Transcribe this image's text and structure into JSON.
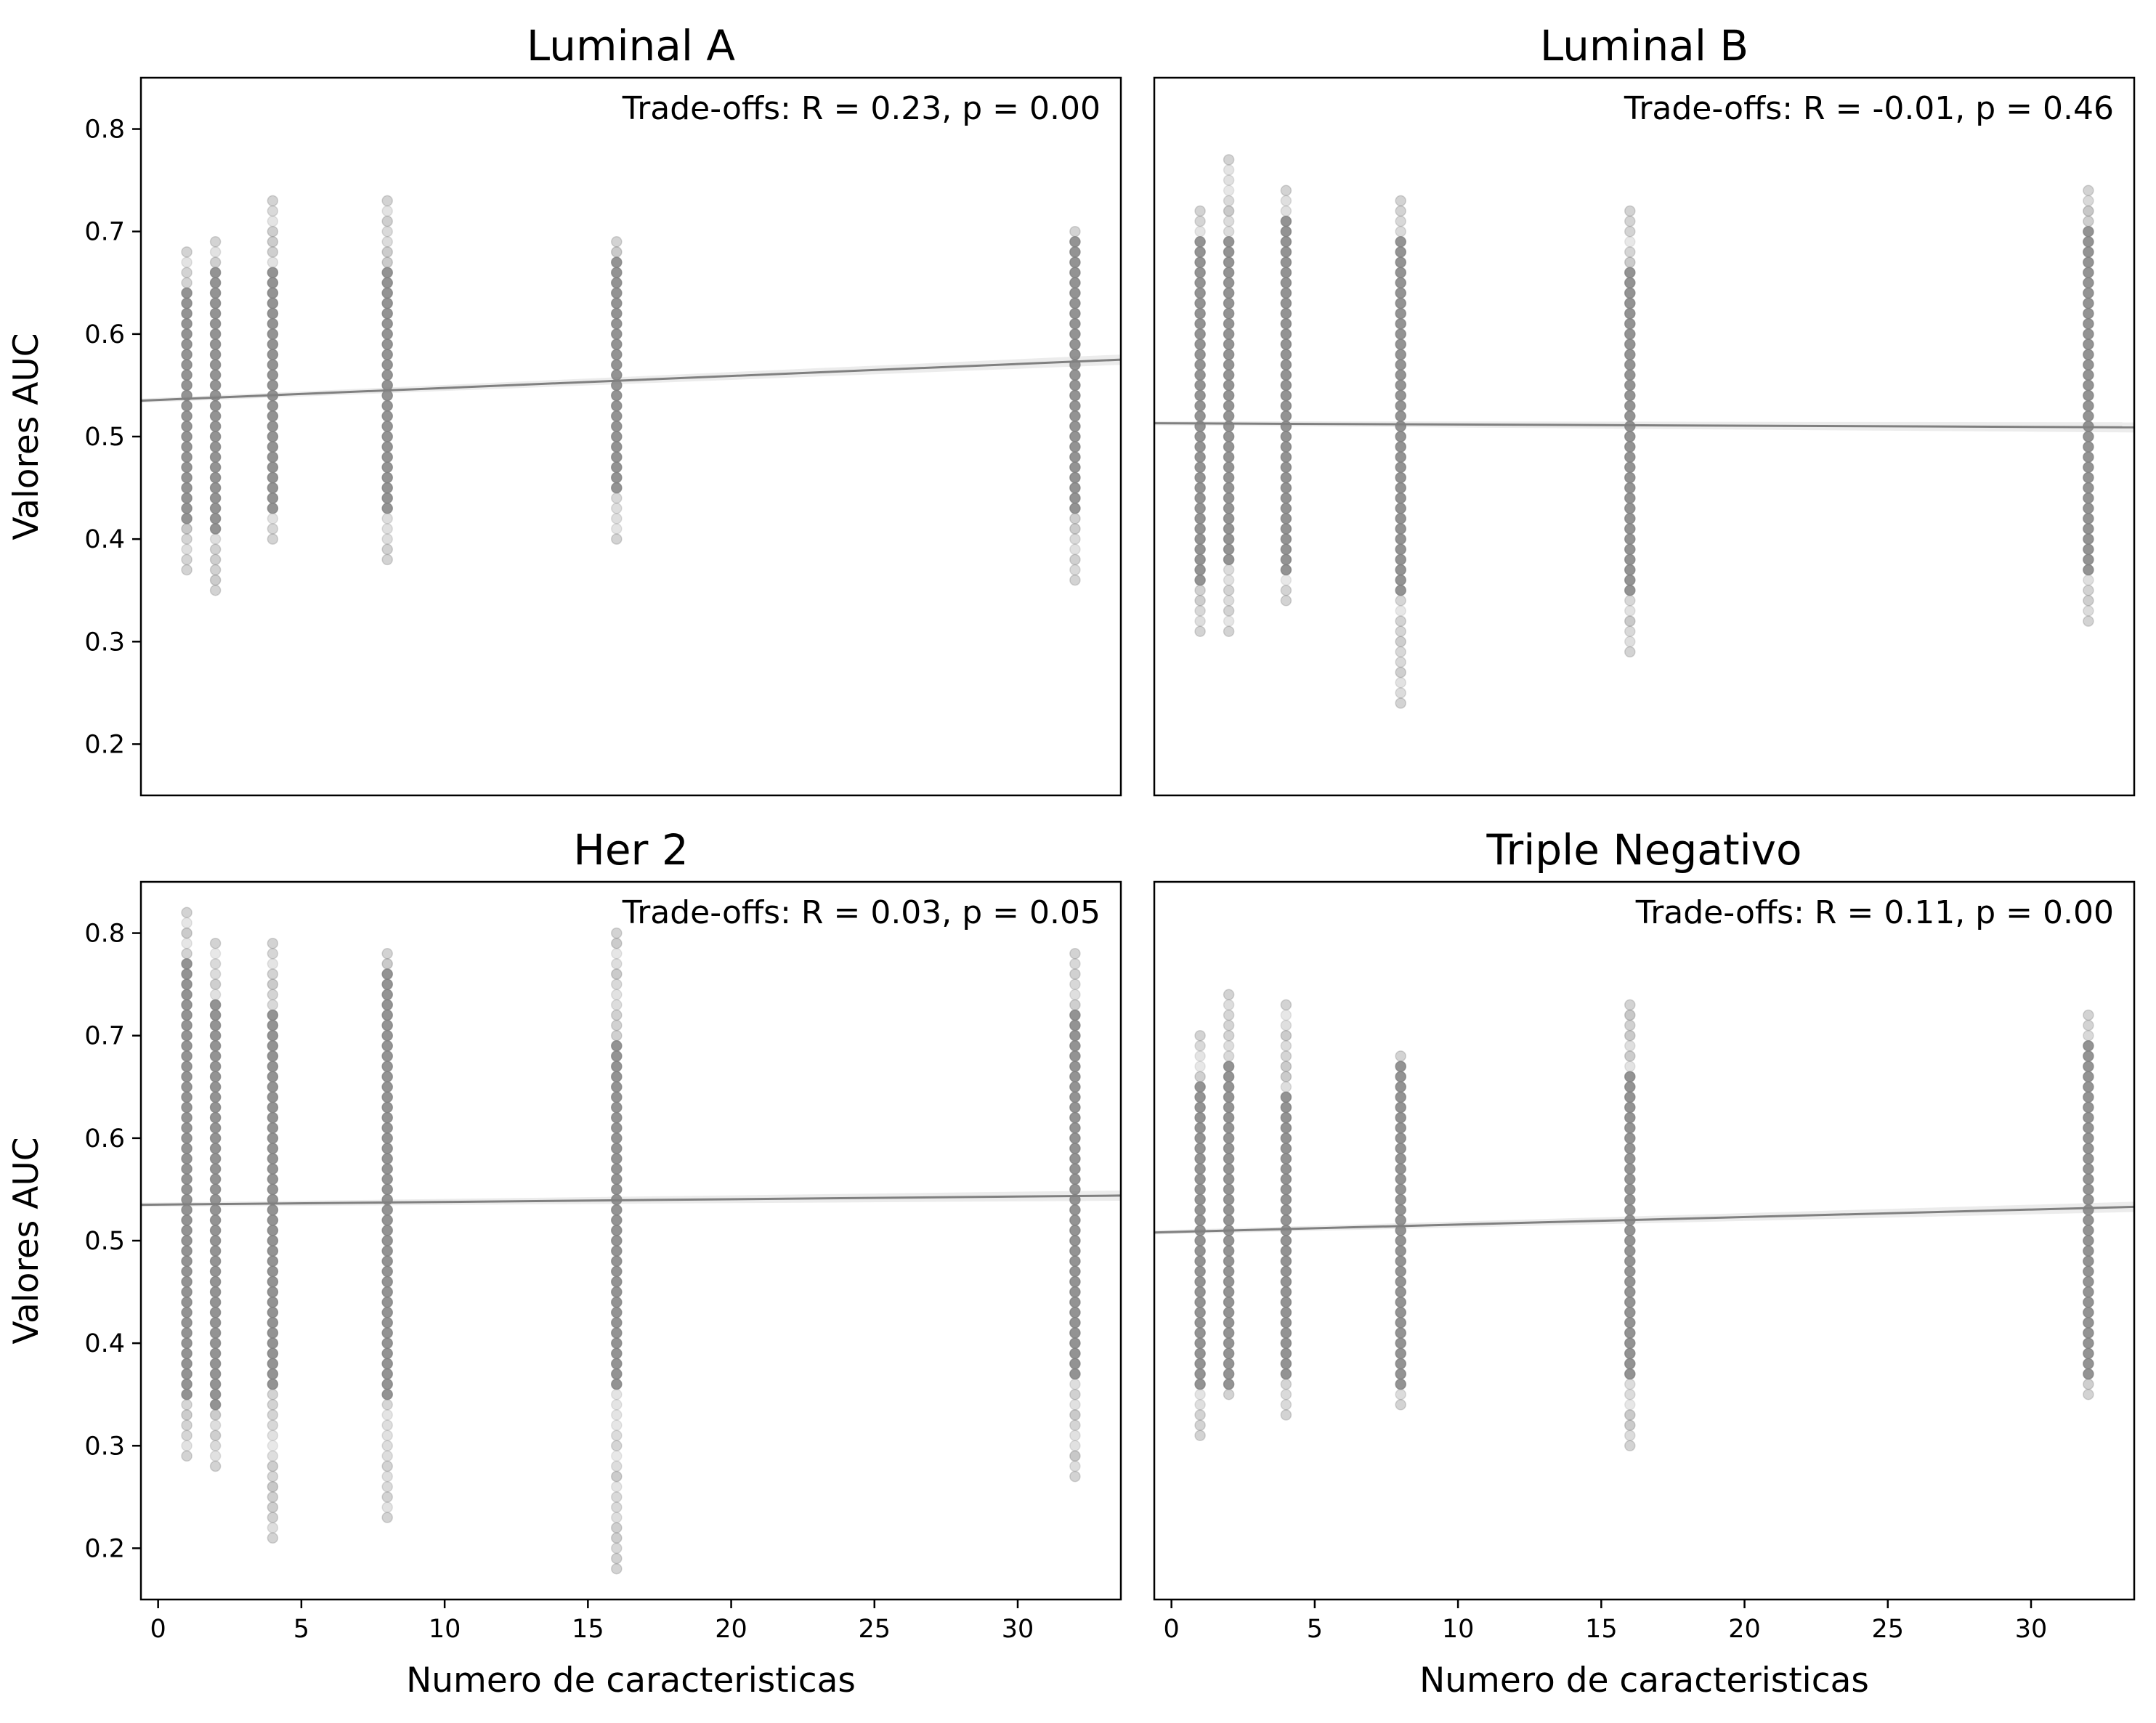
{
  "figure": {
    "point_color": "#808080",
    "line_color": "#808080"
  },
  "chart_data": [
    {
      "type": "scatter",
      "title": "Luminal A",
      "annotation": "Trade-offs: R = 0.23, p = 0.00",
      "xlabel": "",
      "ylabel": "Valores AUC",
      "xlim": [
        -0.6,
        33.6
      ],
      "ylim": [
        0.15,
        0.85
      ],
      "xticks": [],
      "yticks": [
        0.2,
        0.3,
        0.4,
        0.5,
        0.6,
        0.7,
        0.8
      ],
      "regression": {
        "x": [
          -0.6,
          33.6
        ],
        "y": [
          0.535,
          0.575
        ]
      },
      "groups": [
        {
          "x": 1,
          "min": 0.37,
          "max": 0.68,
          "dense_min": 0.42,
          "dense_max": 0.64
        },
        {
          "x": 2,
          "min": 0.35,
          "max": 0.69,
          "dense_min": 0.41,
          "dense_max": 0.66
        },
        {
          "x": 4,
          "min": 0.4,
          "max": 0.73,
          "dense_min": 0.43,
          "dense_max": 0.66
        },
        {
          "x": 8,
          "min": 0.38,
          "max": 0.73,
          "dense_min": 0.43,
          "dense_max": 0.66
        },
        {
          "x": 16,
          "min": 0.4,
          "max": 0.69,
          "dense_min": 0.45,
          "dense_max": 0.67
        },
        {
          "x": 32,
          "min": 0.36,
          "max": 0.7,
          "dense_min": 0.43,
          "dense_max": 0.69
        }
      ]
    },
    {
      "type": "scatter",
      "title": "Luminal B",
      "annotation": "Trade-offs: R = -0.01, p = 0.46",
      "xlabel": "",
      "ylabel": "",
      "xlim": [
        -0.6,
        33.6
      ],
      "ylim": [
        0.15,
        0.85
      ],
      "xticks": [],
      "yticks": [],
      "regression": {
        "x": [
          -0.6,
          33.6
        ],
        "y": [
          0.513,
          0.509
        ]
      },
      "groups": [
        {
          "x": 1,
          "min": 0.31,
          "max": 0.72,
          "dense_min": 0.36,
          "dense_max": 0.69
        },
        {
          "x": 2,
          "min": 0.31,
          "max": 0.77,
          "dense_min": 0.38,
          "dense_max": 0.69
        },
        {
          "x": 4,
          "min": 0.34,
          "max": 0.74,
          "dense_min": 0.37,
          "dense_max": 0.71
        },
        {
          "x": 8,
          "min": 0.24,
          "max": 0.73,
          "dense_min": 0.35,
          "dense_max": 0.69
        },
        {
          "x": 16,
          "min": 0.29,
          "max": 0.72,
          "dense_min": 0.35,
          "dense_max": 0.66
        },
        {
          "x": 32,
          "min": 0.32,
          "max": 0.74,
          "dense_min": 0.37,
          "dense_max": 0.7
        }
      ]
    },
    {
      "type": "scatter",
      "title": "Her 2",
      "annotation": "Trade-offs: R = 0.03, p = 0.05",
      "xlabel": "Numero de caracteristicas",
      "ylabel": "Valores AUC",
      "xlim": [
        -0.6,
        33.6
      ],
      "ylim": [
        0.15,
        0.85
      ],
      "xticks": [
        0,
        5,
        10,
        15,
        20,
        25,
        30
      ],
      "yticks": [
        0.2,
        0.3,
        0.4,
        0.5,
        0.6,
        0.7,
        0.8
      ],
      "regression": {
        "x": [
          -0.6,
          33.6
        ],
        "y": [
          0.535,
          0.544
        ]
      },
      "groups": [
        {
          "x": 1,
          "min": 0.29,
          "max": 0.82,
          "dense_min": 0.35,
          "dense_max": 0.77
        },
        {
          "x": 2,
          "min": 0.28,
          "max": 0.79,
          "dense_min": 0.34,
          "dense_max": 0.73
        },
        {
          "x": 4,
          "min": 0.21,
          "max": 0.79,
          "dense_min": 0.36,
          "dense_max": 0.72
        },
        {
          "x": 8,
          "min": 0.23,
          "max": 0.78,
          "dense_min": 0.35,
          "dense_max": 0.76
        },
        {
          "x": 16,
          "min": 0.18,
          "max": 0.8,
          "dense_min": 0.36,
          "dense_max": 0.69
        },
        {
          "x": 32,
          "min": 0.27,
          "max": 0.78,
          "dense_min": 0.37,
          "dense_max": 0.72
        }
      ]
    },
    {
      "type": "scatter",
      "title": "Triple Negativo",
      "annotation": "Trade-offs: R = 0.11, p = 0.00",
      "xlabel": "Numero de caracteristicas",
      "ylabel": "",
      "xlim": [
        -0.6,
        33.6
      ],
      "ylim": [
        0.15,
        0.85
      ],
      "xticks": [
        0,
        5,
        10,
        15,
        20,
        25,
        30
      ],
      "yticks": [],
      "regression": {
        "x": [
          -0.6,
          33.6
        ],
        "y": [
          0.508,
          0.533
        ]
      },
      "groups": [
        {
          "x": 1,
          "min": 0.31,
          "max": 0.7,
          "dense_min": 0.36,
          "dense_max": 0.65
        },
        {
          "x": 2,
          "min": 0.35,
          "max": 0.74,
          "dense_min": 0.36,
          "dense_max": 0.67
        },
        {
          "x": 4,
          "min": 0.33,
          "max": 0.73,
          "dense_min": 0.37,
          "dense_max": 0.64
        },
        {
          "x": 8,
          "min": 0.34,
          "max": 0.68,
          "dense_min": 0.36,
          "dense_max": 0.67
        },
        {
          "x": 16,
          "min": 0.3,
          "max": 0.73,
          "dense_min": 0.37,
          "dense_max": 0.66
        },
        {
          "x": 32,
          "min": 0.35,
          "max": 0.72,
          "dense_min": 0.37,
          "dense_max": 0.69
        }
      ]
    }
  ]
}
